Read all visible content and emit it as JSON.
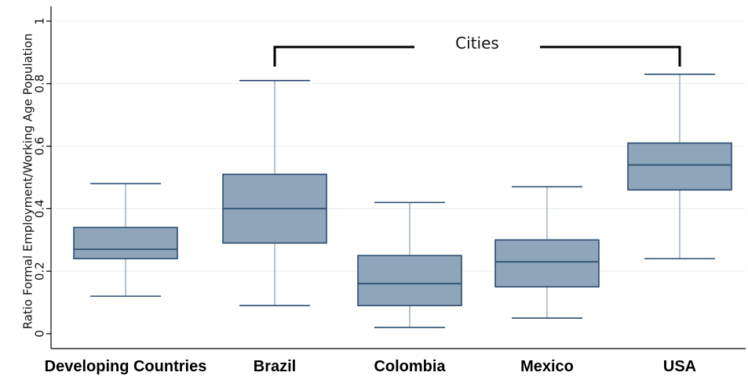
{
  "chart_data": {
    "type": "box",
    "ylabel": "Ratio Formal Employment/Working Age Population",
    "ylim": [
      0,
      1
    ],
    "yticks": [
      0,
      0.2,
      0.4,
      0.6,
      0.8,
      1
    ],
    "ytick_labels": [
      "0",
      "0.2",
      "0.4",
      "0.6",
      "0.8",
      "1"
    ],
    "grid": true,
    "categories": [
      "Developing Countries",
      "Brazil",
      "Colombia",
      "Mexico",
      "USA"
    ],
    "boxes": [
      {
        "name": "Developing Countries",
        "whisker_low": 0.12,
        "q1": 0.24,
        "median": 0.27,
        "q3": 0.34,
        "whisker_high": 0.48
      },
      {
        "name": "Brazil",
        "whisker_low": 0.09,
        "q1": 0.29,
        "median": 0.4,
        "q3": 0.51,
        "whisker_high": 0.81
      },
      {
        "name": "Colombia",
        "whisker_low": 0.02,
        "q1": 0.09,
        "median": 0.16,
        "q3": 0.25,
        "whisker_high": 0.42
      },
      {
        "name": "Mexico",
        "whisker_low": 0.05,
        "q1": 0.15,
        "median": 0.23,
        "q3": 0.3,
        "whisker_high": 0.47
      },
      {
        "name": "USA",
        "whisker_low": 0.24,
        "q1": 0.46,
        "median": 0.54,
        "q3": 0.61,
        "whisker_high": 0.83
      }
    ],
    "annotation": {
      "text": "Cities",
      "from_category": "Brazil",
      "to_category": "USA"
    },
    "colors": {
      "box_fill": "#8fa5ba",
      "box_stroke": "#2a4d6e",
      "whisker": "#6f8aa3",
      "grid": "#e9eef2",
      "axis": "#000000",
      "bracket": "#000000"
    }
  }
}
